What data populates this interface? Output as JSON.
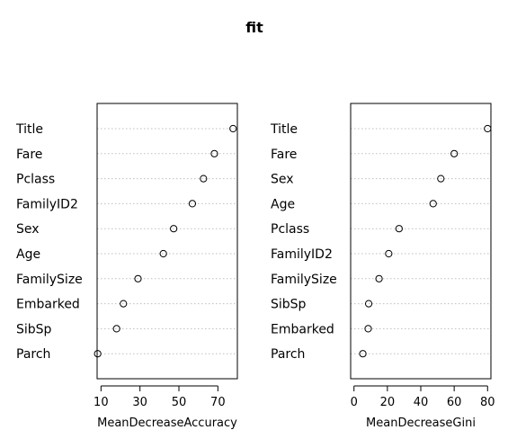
{
  "chart_data": {
    "title": "fit",
    "panels": [
      {
        "type": "scatter",
        "xlabel": "MeanDecreaseAccuracy",
        "xticks": [
          10,
          30,
          50,
          70
        ],
        "xlim": [
          8,
          80
        ],
        "categories": [
          "Title",
          "Fare",
          "Pclass",
          "FamilyID2",
          "Sex",
          "Age",
          "FamilySize",
          "Embarked",
          "SibSp",
          "Parch"
        ],
        "values": [
          77.8,
          68.2,
          62.6,
          56.9,
          47.3,
          42.0,
          29.0,
          21.5,
          18.0,
          8.3
        ]
      },
      {
        "type": "scatter",
        "xlabel": "MeanDecreaseGini",
        "xticks": [
          0,
          20,
          40,
          60,
          80
        ],
        "xlim": [
          -2,
          82
        ],
        "categories": [
          "Title",
          "Fare",
          "Sex",
          "Age",
          "Pclass",
          "FamilyID2",
          "FamilySize",
          "SibSp",
          "Embarked",
          "Parch"
        ],
        "values": [
          80.0,
          60.0,
          52.0,
          47.4,
          27.0,
          20.8,
          15.0,
          8.8,
          8.5,
          5.3
        ]
      }
    ]
  }
}
